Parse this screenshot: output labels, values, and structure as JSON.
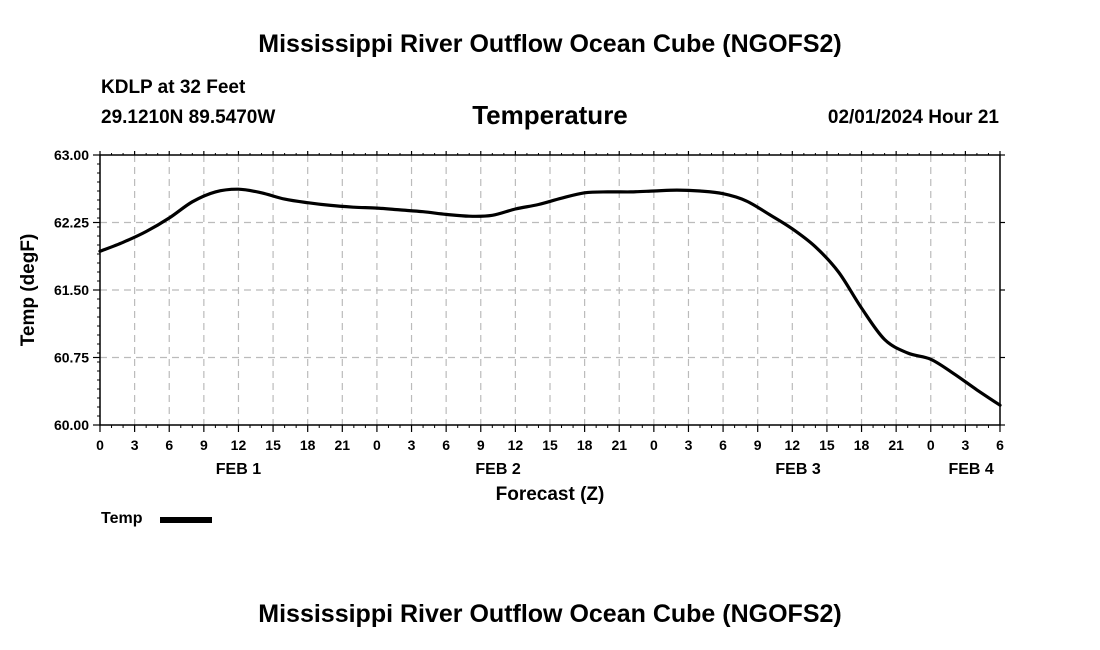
{
  "header": {
    "title": "Mississippi River Outflow Ocean Cube (NGOFS2)",
    "station": "KDLP at 32 Feet",
    "coords": "29.1210N  89.5470W",
    "subtitle": "Temperature",
    "datetime": "02/01/2024 Hour 21"
  },
  "footer": {
    "title": "Mississippi River Outflow Ocean Cube (NGOFS2)"
  },
  "legend": {
    "label": "Temp"
  },
  "chart_data": {
    "type": "line",
    "title": "Temperature",
    "xlabel": "Forecast (Z)",
    "ylabel": "Temp (degF)",
    "xlim": [
      0,
      78
    ],
    "ylim": [
      60.0,
      63.0
    ],
    "yticks": [
      "60.00",
      "60.75",
      "61.50",
      "62.25",
      "63.00"
    ],
    "xtick_labels": [
      "0",
      "3",
      "6",
      "9",
      "12",
      "15",
      "18",
      "21",
      "0",
      "3",
      "6",
      "9",
      "12",
      "15",
      "18",
      "21",
      "0",
      "3",
      "6",
      "9",
      "12",
      "15",
      "18",
      "21",
      "0",
      "3",
      "6"
    ],
    "day_labels": [
      {
        "label": "FEB 1",
        "hour": 12
      },
      {
        "label": "FEB 2",
        "hour": 34.5
      },
      {
        "label": "FEB 3",
        "hour": 60.5
      },
      {
        "label": "FEB 4",
        "hour": 75.5
      }
    ],
    "grid": true,
    "legend_position": "bottom-left",
    "series": [
      {
        "name": "Temp",
        "color": "#000000",
        "x": [
          0,
          2,
          4,
          6,
          8,
          10,
          12,
          14,
          16,
          18,
          20,
          22,
          24,
          26,
          28,
          30,
          32,
          34,
          36,
          38,
          40,
          42,
          44,
          46,
          48,
          50,
          52,
          54,
          56,
          58,
          60,
          62,
          64,
          66,
          68,
          70,
          72,
          74,
          76,
          78
        ],
        "values": [
          61.93,
          62.03,
          62.15,
          62.3,
          62.48,
          62.59,
          62.62,
          62.58,
          62.51,
          62.47,
          62.44,
          62.42,
          62.41,
          62.39,
          62.37,
          62.34,
          62.32,
          62.33,
          62.4,
          62.45,
          62.52,
          62.58,
          62.59,
          62.59,
          62.6,
          62.61,
          62.6,
          62.57,
          62.49,
          62.34,
          62.18,
          61.98,
          61.7,
          61.3,
          60.95,
          60.8,
          60.73,
          60.57,
          60.39,
          60.22
        ]
      }
    ]
  }
}
